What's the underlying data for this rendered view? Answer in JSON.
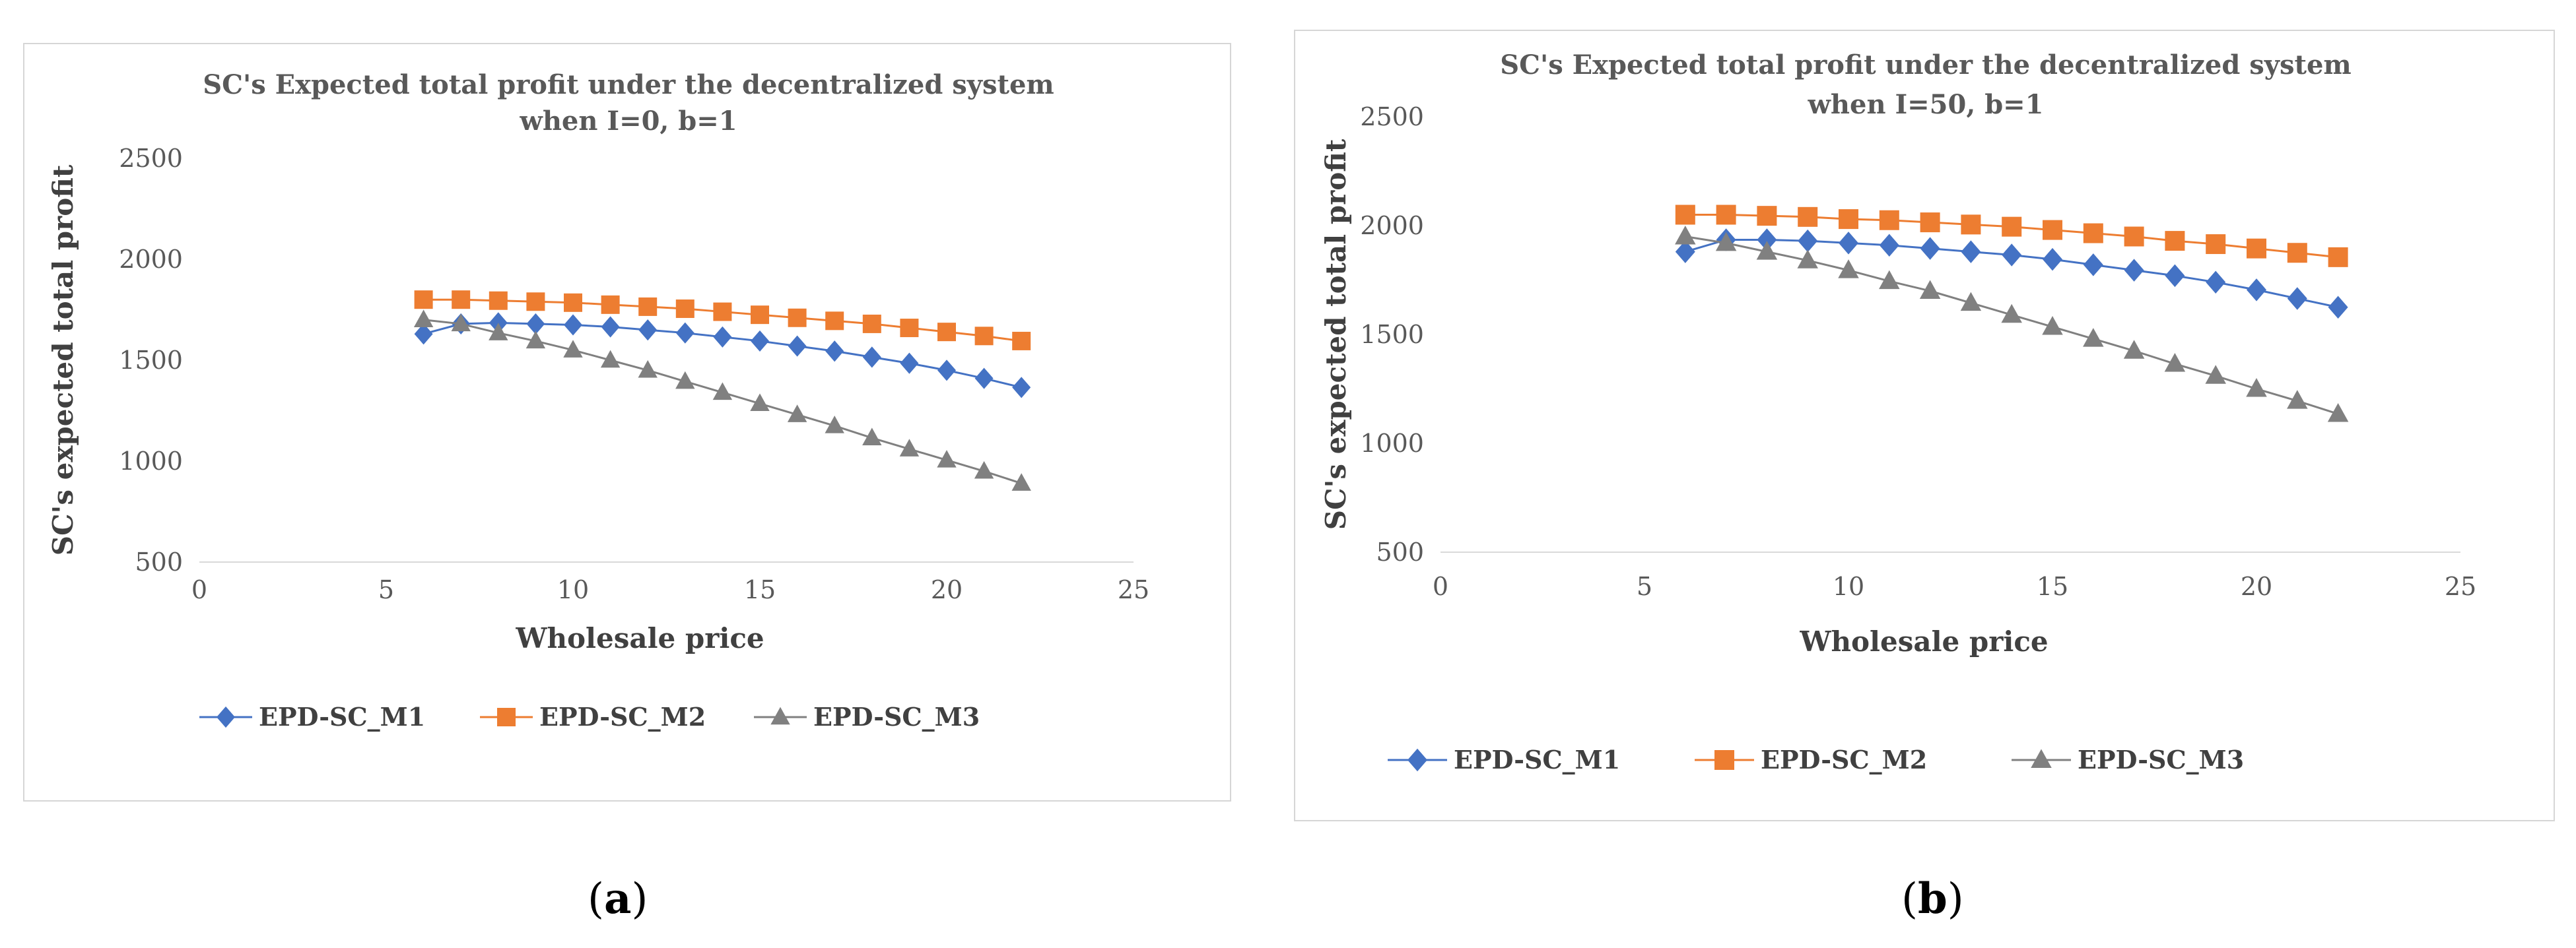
{
  "colors": {
    "M1": "#4472C4",
    "M2": "#ED7D31",
    "M3": "#808080"
  },
  "chart_data": [
    {
      "type": "line",
      "panel_label": "a",
      "title": [
        "SC's Expected total profit under the decentralized system",
        "when I=0, b=1"
      ],
      "xlabel": "Wholesale price",
      "ylabel": "SC's expected total profit",
      "xlim": [
        0,
        25
      ],
      "ylim": [
        500,
        2500
      ],
      "xticks": [
        0,
        5,
        10,
        15,
        20,
        25
      ],
      "yticks": [
        500,
        1000,
        1500,
        2000,
        2500
      ],
      "legend_position": "bottom",
      "x": [
        6,
        7,
        8,
        9,
        10,
        11,
        12,
        13,
        14,
        15,
        16,
        17,
        18,
        19,
        20,
        21,
        22
      ],
      "series": [
        {
          "name": "EPD-SC_M1",
          "marker": "diamond",
          "color": "#4472C4",
          "values": [
            1630,
            1680,
            1685,
            1680,
            1675,
            1665,
            1650,
            1635,
            1615,
            1595,
            1570,
            1545,
            1515,
            1485,
            1450,
            1410,
            1365
          ]
        },
        {
          "name": "EPD-SC_M2",
          "marker": "square",
          "color": "#ED7D31",
          "values": [
            1800,
            1800,
            1795,
            1790,
            1785,
            1775,
            1765,
            1755,
            1740,
            1725,
            1710,
            1695,
            1680,
            1660,
            1640,
            1620,
            1595
          ]
        },
        {
          "name": "EPD-SC_M3",
          "marker": "triangle",
          "color": "#808080",
          "values": [
            1700,
            1680,
            1635,
            1595,
            1550,
            1500,
            1450,
            1395,
            1340,
            1285,
            1230,
            1175,
            1115,
            1060,
            1005,
            950,
            890
          ]
        }
      ]
    },
    {
      "type": "line",
      "panel_label": "b",
      "title": [
        "SC's Expected total profit under the decentralized system",
        "when I=50, b=1"
      ],
      "xlabel": "Wholesale price",
      "ylabel": "SC's expected total profit",
      "xlim": [
        0,
        25
      ],
      "ylim": [
        500,
        2500
      ],
      "xticks": [
        0,
        5,
        10,
        15,
        20,
        25
      ],
      "yticks": [
        500,
        1000,
        1500,
        2000,
        2500
      ],
      "legend_position": "bottom",
      "x": [
        6,
        7,
        8,
        9,
        10,
        11,
        12,
        13,
        14,
        15,
        16,
        17,
        18,
        19,
        20,
        21,
        22
      ],
      "series": [
        {
          "name": "EPD-SC_M1",
          "marker": "diamond",
          "color": "#4472C4",
          "values": [
            1880,
            1935,
            1935,
            1930,
            1920,
            1910,
            1895,
            1880,
            1865,
            1845,
            1820,
            1795,
            1770,
            1740,
            1705,
            1665,
            1625
          ]
        },
        {
          "name": "EPD-SC_M2",
          "marker": "square",
          "color": "#ED7D31",
          "values": [
            2050,
            2050,
            2045,
            2040,
            2030,
            2025,
            2015,
            2005,
            1995,
            1980,
            1965,
            1950,
            1930,
            1915,
            1895,
            1875,
            1855
          ]
        },
        {
          "name": "EPD-SC_M3",
          "marker": "triangle",
          "color": "#808080",
          "values": [
            1950,
            1920,
            1880,
            1840,
            1795,
            1745,
            1700,
            1645,
            1590,
            1535,
            1480,
            1425,
            1365,
            1310,
            1250,
            1195,
            1135
          ]
        }
      ]
    }
  ]
}
